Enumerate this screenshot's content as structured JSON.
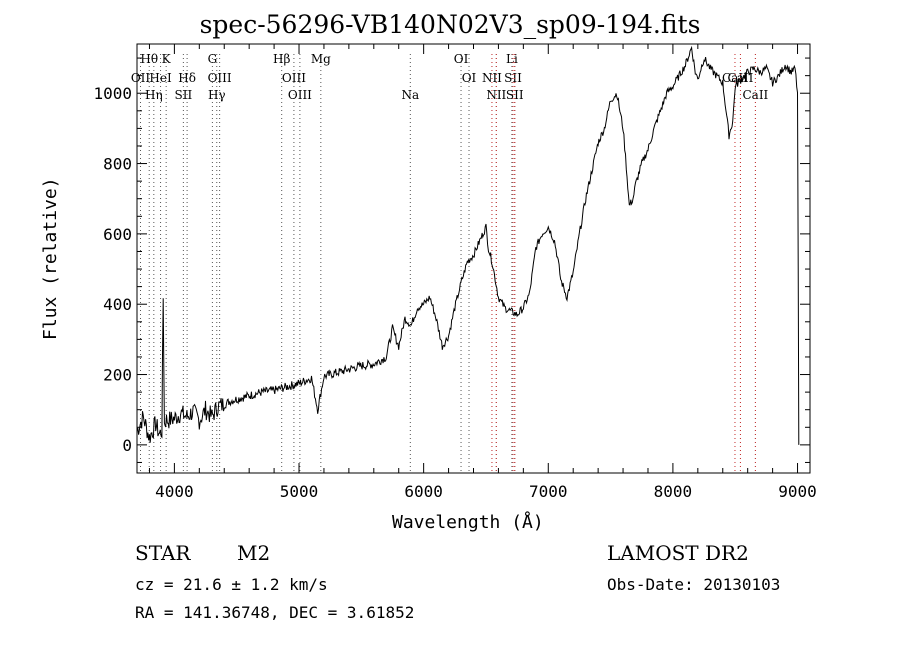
{
  "chart_data": {
    "type": "line",
    "title": "spec-56296-VB140N02V3_sp09-194.fits",
    "xlabel": "Wavelength (Å)",
    "ylabel": "Flux (relative)",
    "xlim": [
      3700,
      9100
    ],
    "ylim": [
      -80,
      1140
    ],
    "xticks": [
      4000,
      5000,
      6000,
      7000,
      8000,
      9000
    ],
    "yticks": [
      0,
      200,
      400,
      600,
      800,
      1000
    ],
    "grid": false,
    "series": [
      {
        "x": [
          3700,
          3750,
          3800,
          3850,
          3880,
          3900,
          3910,
          3920,
          3930,
          3950,
          4000,
          4050,
          4100,
          4150,
          4200,
          4250,
          4300,
          4350,
          4400,
          4450,
          4500,
          4600,
          4700,
          4800,
          4900,
          5000,
          5100,
          5150,
          5200,
          5300,
          5400,
          5500,
          5600,
          5650,
          5700,
          5750,
          5800,
          5850,
          5900,
          5950,
          6000,
          6050,
          6100,
          6150,
          6200,
          6250,
          6300,
          6350,
          6400,
          6450,
          6500,
          6520,
          6550,
          6580,
          6600,
          6650,
          6700,
          6750,
          6800,
          6850,
          6900,
          6950,
          7000,
          7050,
          7080,
          7100,
          7150,
          7200,
          7250,
          7300,
          7350,
          7400,
          7450,
          7500,
          7550,
          7600,
          7620,
          7650,
          7680,
          7700,
          7750,
          7800,
          7850,
          7900,
          7950,
          8000,
          8050,
          8100,
          8150,
          8180,
          8200,
          8250,
          8300,
          8350,
          8400,
          8450,
          8480,
          8500,
          8550,
          8600,
          8650,
          8700,
          8750,
          8800,
          8850,
          8900,
          8950,
          8980,
          9000,
          9010
        ],
        "y": [
          40,
          80,
          20,
          60,
          30,
          40,
          420,
          60,
          70,
          70,
          75,
          90,
          80,
          95,
          70,
          100,
          80,
          110,
          115,
          125,
          130,
          140,
          150,
          155,
          165,
          175,
          190,
          100,
          195,
          205,
          215,
          225,
          230,
          240,
          250,
          330,
          280,
          360,
          340,
          390,
          400,
          420,
          360,
          280,
          310,
          390,
          460,
          520,
          540,
          580,
          620,
          560,
          520,
          460,
          420,
          390,
          380,
          370,
          390,
          430,
          560,
          600,
          620,
          580,
          520,
          470,
          420,
          490,
          600,
          700,
          780,
          860,
          900,
          980,
          1000,
          900,
          820,
          680,
          700,
          740,
          800,
          840,
          900,
          950,
          1000,
          1020,
          1050,
          1080,
          1130,
          1060,
          1040,
          1100,
          1070,
          1050,
          1030,
          880,
          920,
          1020,
          1040,
          1060,
          1070,
          1060,
          1070,
          1030,
          1050,
          1080,
          1060,
          1070,
          1000,
          0
        ]
      }
    ],
    "line_labels": [
      {
        "text": "Hθ",
        "wl": 3798
      },
      {
        "text": "K",
        "wl": 3934
      },
      {
        "text": "G",
        "wl": 4305
      },
      {
        "text": "Hβ",
        "wl": 4861
      },
      {
        "text": "Mg",
        "wl": 5175
      },
      {
        "text": "OI",
        "wl": 6300
      },
      {
        "text": "Li",
        "wl": 6708
      },
      {
        "text": "OII",
        "wl": 3728
      },
      {
        "text": "HeI",
        "wl": 3889
      },
      {
        "text": "Hδ",
        "wl": 4102
      },
      {
        "text": "OIII",
        "wl": 4363
      },
      {
        "text": "OIII",
        "wl": 4959
      },
      {
        "text": "OI",
        "wl": 6364
      },
      {
        "text": "NII",
        "wl": 6548
      },
      {
        "text": "SII",
        "wl": 6717
      },
      {
        "text": "CaII",
        "wl": 8498
      },
      {
        "text": "CaII",
        "wl": 8542
      },
      {
        "text": "Hη",
        "wl": 3835
      },
      {
        "text": "SII",
        "wl": 4072
      },
      {
        "text": "Hγ",
        "wl": 4340
      },
      {
        "text": "OIII",
        "wl": 5007
      },
      {
        "text": "Na",
        "wl": 5893
      },
      {
        "text": "NII",
        "wl": 6583
      },
      {
        "text": "SII",
        "wl": 6731
      },
      {
        "text": "CaII",
        "wl": 8662
      }
    ]
  },
  "footer": {
    "class_label": "STAR",
    "subclass": "M2",
    "survey": "LAMOST DR2",
    "cz": "cz = 21.6 ± 1.2 km/s",
    "obs_date": "Obs-Date: 20130103",
    "radec": "RA = 141.36748, DEC =   3.61852"
  }
}
